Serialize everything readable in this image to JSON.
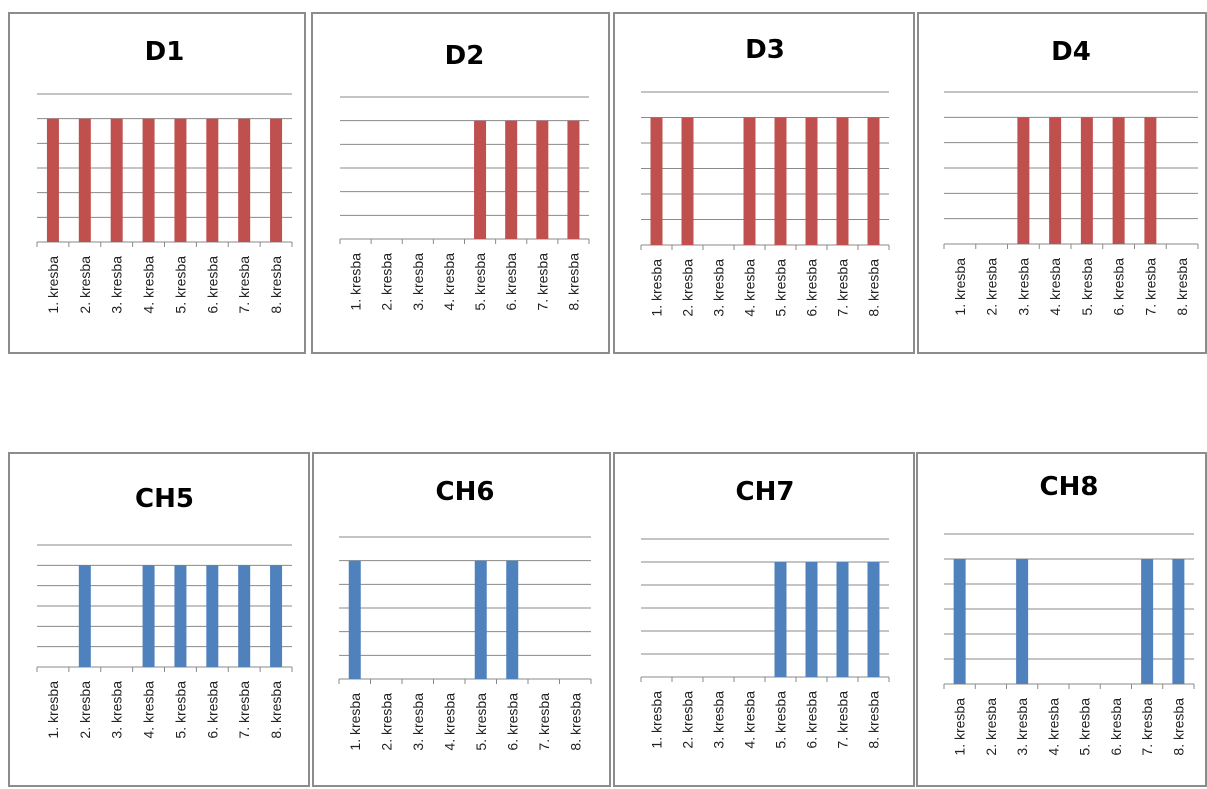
{
  "colors": {
    "red_series": "#c0504d",
    "blue_series": "#4f81bd"
  },
  "chart_data": [
    {
      "id": "D1",
      "type": "bar",
      "title": "D1",
      "color": "#c0504d",
      "categories": [
        "1. kresba",
        "2. kresba",
        "3. kresba",
        "4. kresba",
        "5. kresba",
        "6. kresba",
        "7. kresba",
        "8. kresba"
      ],
      "values": [
        1,
        1,
        1,
        1,
        1,
        1,
        1,
        1
      ],
      "ylim": [
        0,
        1.2
      ],
      "grid": true,
      "legend": "none"
    },
    {
      "id": "D2",
      "type": "bar",
      "title": "D2",
      "color": "#c0504d",
      "categories": [
        "1. kresba",
        "2. kresba",
        "3. kresba",
        "4. kresba",
        "5. kresba",
        "6. kresba",
        "7. kresba",
        "8. kresba"
      ],
      "values": [
        0,
        0,
        0,
        0,
        1,
        1,
        1,
        1
      ],
      "ylim": [
        0,
        1.2
      ],
      "grid": true,
      "legend": "none"
    },
    {
      "id": "D3",
      "type": "bar",
      "title": "D3",
      "color": "#c0504d",
      "categories": [
        "1. kresba",
        "2. kresba",
        "3. kresba",
        "4. kresba",
        "5. kresba",
        "6. kresba",
        "7. kresba",
        "8. kresba"
      ],
      "values": [
        1,
        1,
        0,
        1,
        1,
        1,
        1,
        1
      ],
      "ylim": [
        0,
        1.2
      ],
      "grid": true,
      "legend": "none"
    },
    {
      "id": "D4",
      "type": "bar",
      "title": "D4",
      "color": "#c0504d",
      "categories": [
        "1. kresba",
        "2. kresba",
        "3. kresba",
        "4. kresba",
        "5. kresba",
        "6. kresba",
        "7. kresba",
        "8. kresba"
      ],
      "values": [
        0,
        0,
        1,
        1,
        1,
        1,
        1,
        0
      ],
      "ylim": [
        0,
        1.2
      ],
      "grid": true,
      "legend": "none"
    },
    {
      "id": "CH5",
      "type": "bar",
      "title": "CH5",
      "color": "#4f81bd",
      "categories": [
        "1. kresba",
        "2. kresba",
        "3. kresba",
        "4. kresba",
        "5. kresba",
        "6. kresba",
        "7. kresba",
        "8. kresba"
      ],
      "values": [
        0,
        1,
        0,
        1,
        1,
        1,
        1,
        1
      ],
      "ylim": [
        0,
        1.2
      ],
      "grid": true,
      "legend": "none"
    },
    {
      "id": "CH6",
      "type": "bar",
      "title": "CH6",
      "color": "#4f81bd",
      "categories": [
        "1. kresba",
        "2. kresba",
        "3. kresba",
        "4. kresba",
        "5. kresba",
        "6. kresba",
        "7. kresba",
        "8. kresba"
      ],
      "values": [
        1,
        0,
        0,
        0,
        1,
        1,
        0,
        0
      ],
      "ylim": [
        0,
        1.2
      ],
      "grid": true,
      "legend": "none"
    },
    {
      "id": "CH7",
      "type": "bar",
      "title": "CH7",
      "color": "#4f81bd",
      "categories": [
        "1. kresba",
        "2. kresba",
        "3. kresba",
        "4. kresba",
        "5. kresba",
        "6. kresba",
        "7. kresba",
        "8. kresba"
      ],
      "values": [
        0,
        0,
        0,
        0,
        1,
        1,
        1,
        1
      ],
      "ylim": [
        0,
        1.2
      ],
      "grid": true,
      "legend": "none"
    },
    {
      "id": "CH8",
      "type": "bar",
      "title": "CH8",
      "color": "#4f81bd",
      "categories": [
        "1. kresba",
        "2. kresba",
        "3. kresba",
        "4. kresba",
        "5. kresba",
        "6. kresba",
        "7. kresba",
        "8. kresba"
      ],
      "values": [
        1,
        0,
        1,
        0,
        0,
        0,
        1,
        1
      ],
      "ylim": [
        0,
        1.2
      ],
      "grid": true,
      "legend": "none"
    }
  ]
}
